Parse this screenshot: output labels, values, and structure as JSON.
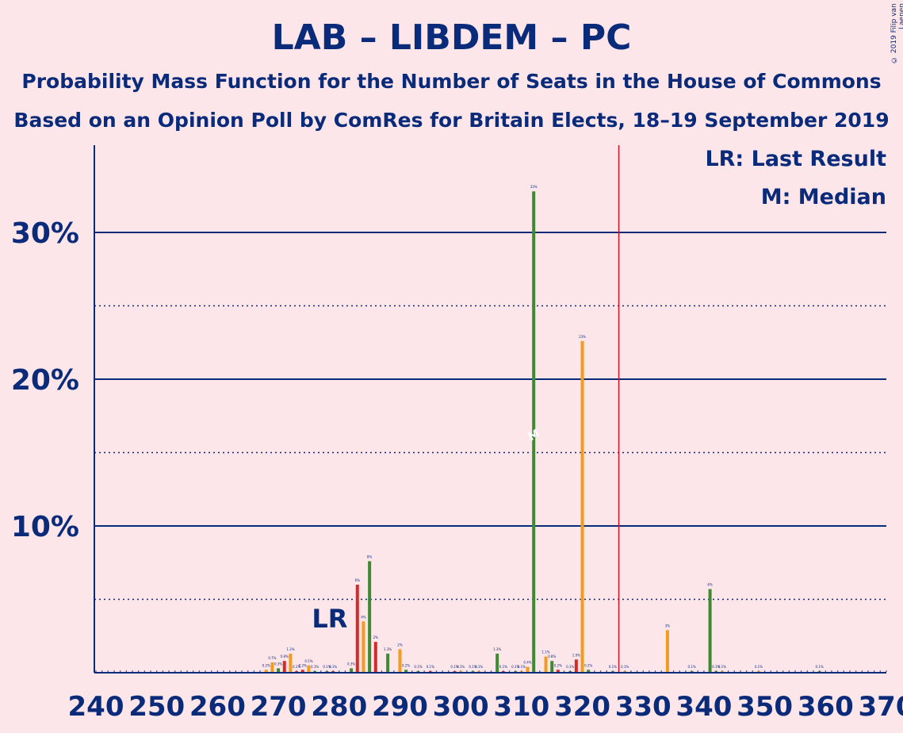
{
  "title": "LAB – LIBDEM – PC",
  "subtitle": "Probability Mass Function for the Number of Seats in the House of Commons",
  "subtitle2": "Based on an Opinion Poll by ComRes for Britain Elects, 18–19 September 2019",
  "copyright": "© 2019 Filip van Laenen",
  "legend": {
    "last_result": "LR: Last Result",
    "median": "M: Median"
  },
  "labels": {
    "last_result_marker": "LR",
    "median_marker": "M"
  },
  "colors": {
    "background": "#fde6ea",
    "text": "#0a2a7a",
    "red": "#d42a2a",
    "orange": "#f29b1c",
    "green": "#3e8a32",
    "majority_line": "#d4122a"
  },
  "chart_data": {
    "type": "bar",
    "xlabel": "",
    "ylabel": "",
    "xlim": [
      240,
      370
    ],
    "ylim": [
      0,
      36
    ],
    "x_ticks": [
      240,
      250,
      260,
      270,
      280,
      290,
      300,
      310,
      320,
      330,
      340,
      350,
      360,
      370
    ],
    "y_ticks_major": [
      10,
      20,
      30
    ],
    "y_tick_labels": [
      "10%",
      "20%",
      "30%"
    ],
    "y_ticks_dotted": [
      5,
      15,
      25
    ],
    "last_result_seat": 281,
    "median_seat": 311,
    "majority_seat": 326,
    "bars": [
      {
        "seat": 268,
        "value": 0.2,
        "color": "orange",
        "label": "0.2%"
      },
      {
        "seat": 269,
        "value": 0.7,
        "color": "orange",
        "label": "0.7%"
      },
      {
        "seat": 270,
        "value": 0.3,
        "color": "green",
        "label": "0.3%"
      },
      {
        "seat": 271,
        "value": 0.8,
        "color": "red",
        "label": "0.8%"
      },
      {
        "seat": 272,
        "value": 1.3,
        "color": "orange",
        "label": "1.3%"
      },
      {
        "seat": 273,
        "value": 0.1,
        "color": "red",
        "label": "0.1%"
      },
      {
        "seat": 274,
        "value": 0.2,
        "color": "red",
        "label": "0.2%"
      },
      {
        "seat": 275,
        "value": 0.5,
        "color": "orange",
        "label": "0.5%"
      },
      {
        "seat": 276,
        "value": 0.1,
        "color": "green",
        "label": "0.1%"
      },
      {
        "seat": 278,
        "value": 0.1,
        "color": "green",
        "label": "0.1%"
      },
      {
        "seat": 279,
        "value": 0.1,
        "color": "red",
        "label": "0.1%"
      },
      {
        "seat": 282,
        "value": 0.3,
        "color": "green",
        "label": "0.3%"
      },
      {
        "seat": 283,
        "value": 6.0,
        "color": "red",
        "label": "6%"
      },
      {
        "seat": 284,
        "value": 3.5,
        "color": "orange",
        "label": "4%"
      },
      {
        "seat": 285,
        "value": 7.6,
        "color": "green",
        "label": "8%"
      },
      {
        "seat": 286,
        "value": 2.1,
        "color": "red",
        "label": "2%"
      },
      {
        "seat": 288,
        "value": 1.3,
        "color": "green",
        "label": "1.3%"
      },
      {
        "seat": 290,
        "value": 1.6,
        "color": "orange",
        "label": "2%"
      },
      {
        "seat": 291,
        "value": 0.2,
        "color": "green",
        "label": "0.2%"
      },
      {
        "seat": 293,
        "value": 0.1,
        "color": "green",
        "label": "0.1%"
      },
      {
        "seat": 295,
        "value": 0.1,
        "color": "red",
        "label": "0.1%"
      },
      {
        "seat": 299,
        "value": 0.1,
        "color": "red",
        "label": "0.1%"
      },
      {
        "seat": 300,
        "value": 0.1,
        "color": "orange",
        "label": "0.1%"
      },
      {
        "seat": 302,
        "value": 0.1,
        "color": "green",
        "label": "0.1%"
      },
      {
        "seat": 303,
        "value": 0.1,
        "color": "orange",
        "label": "0.1%"
      },
      {
        "seat": 306,
        "value": 1.3,
        "color": "green",
        "label": "1.3%"
      },
      {
        "seat": 307,
        "value": 0.1,
        "color": "red",
        "label": "0.1%"
      },
      {
        "seat": 309,
        "value": 0.1,
        "color": "green",
        "label": "0.1%"
      },
      {
        "seat": 310,
        "value": 0.1,
        "color": "orange",
        "label": "0.1%"
      },
      {
        "seat": 311,
        "value": 0.4,
        "color": "orange",
        "label": "0.4%"
      },
      {
        "seat": 312,
        "value": 32.8,
        "color": "green",
        "label": "33%"
      },
      {
        "seat": 314,
        "value": 1.1,
        "color": "orange",
        "label": "1.1%"
      },
      {
        "seat": 315,
        "value": 0.8,
        "color": "green",
        "label": "0.8%"
      },
      {
        "seat": 316,
        "value": 0.2,
        "color": "red",
        "label": "0.2%"
      },
      {
        "seat": 318,
        "value": 0.1,
        "color": "green",
        "label": "0.1%"
      },
      {
        "seat": 319,
        "value": 0.9,
        "color": "red",
        "label": "1.0%"
      },
      {
        "seat": 320,
        "value": 22.6,
        "color": "orange",
        "label": "23%"
      },
      {
        "seat": 321,
        "value": 0.2,
        "color": "green",
        "label": "0.2%"
      },
      {
        "seat": 325,
        "value": 0.1,
        "color": "green",
        "label": "0.1%"
      },
      {
        "seat": 327,
        "value": 0.1,
        "color": "orange",
        "label": "0.1%"
      },
      {
        "seat": 334,
        "value": 2.9,
        "color": "orange",
        "label": "3%"
      },
      {
        "seat": 338,
        "value": 0.1,
        "color": "green",
        "label": "0.1%"
      },
      {
        "seat": 341,
        "value": 5.7,
        "color": "green",
        "label": "6%"
      },
      {
        "seat": 342,
        "value": 0.1,
        "color": "green",
        "label": "0.1%"
      },
      {
        "seat": 343,
        "value": 0.1,
        "color": "orange",
        "label": "0.1%"
      },
      {
        "seat": 349,
        "value": 0.1,
        "color": "orange",
        "label": "0.1%"
      },
      {
        "seat": 359,
        "value": 0.1,
        "color": "green",
        "label": "0.1%"
      }
    ]
  }
}
